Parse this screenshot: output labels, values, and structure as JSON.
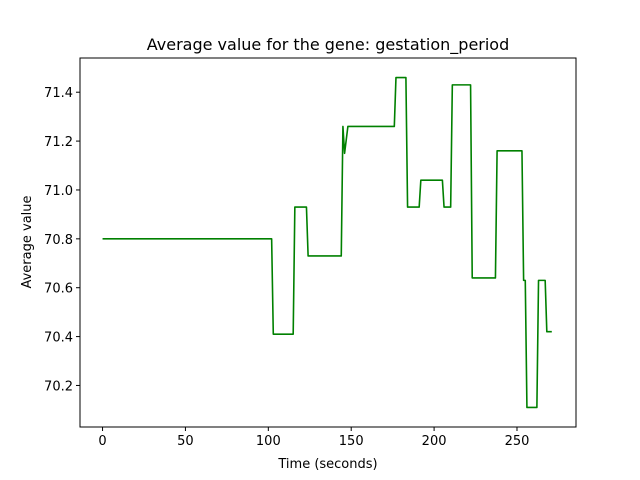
{
  "chart_data": {
    "type": "line",
    "title": "Average value for the gene: gestation_period",
    "xlabel": "Time (seconds)",
    "ylabel": "Average value",
    "xlim": [
      -13.6,
      285.6
    ],
    "ylim": [
      70.03,
      71.54
    ],
    "xticks": [
      0,
      50,
      100,
      150,
      200,
      250
    ],
    "yticks": [
      70.2,
      70.4,
      70.6,
      70.8,
      71.0,
      71.2,
      71.4
    ],
    "xtick_labels": [
      "0",
      "50",
      "100",
      "150",
      "200",
      "250"
    ],
    "ytick_labels": [
      "70.2",
      "70.4",
      "70.6",
      "70.8",
      "71.0",
      "71.2",
      "71.4"
    ],
    "grid": false,
    "series": [
      {
        "color": "#008000",
        "x": [
          0,
          102,
          103,
          115,
          116,
          123,
          124,
          144,
          145,
          146,
          148,
          176,
          177,
          183,
          184,
          191,
          192,
          205,
          206,
          210,
          211,
          222,
          223,
          237,
          238,
          253,
          254,
          255,
          256,
          262,
          263,
          267,
          268,
          271
        ],
        "y": [
          70.8,
          70.8,
          70.41,
          70.41,
          70.93,
          70.93,
          70.73,
          70.73,
          71.26,
          71.15,
          71.26,
          71.26,
          71.46,
          71.46,
          70.93,
          70.93,
          71.04,
          71.04,
          70.93,
          70.93,
          71.43,
          71.43,
          70.64,
          70.64,
          71.16,
          71.16,
          70.63,
          70.63,
          70.11,
          70.11,
          70.63,
          70.63,
          70.42,
          70.42
        ]
      }
    ]
  }
}
